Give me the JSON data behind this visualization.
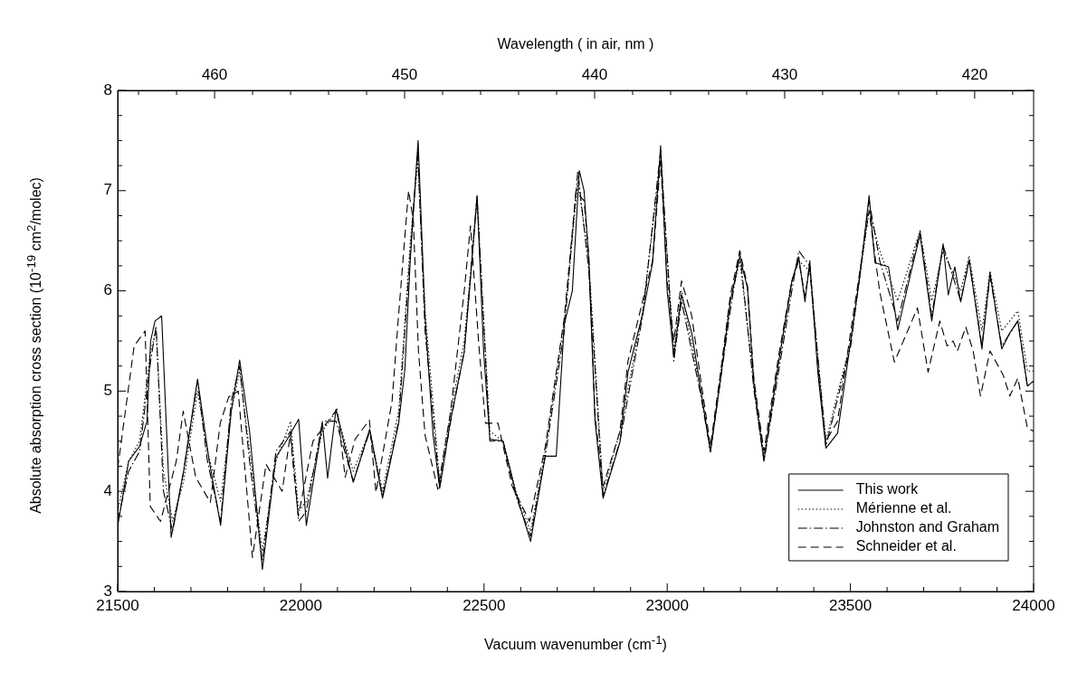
{
  "chart_data": {
    "type": "line",
    "xlabel": "Vacuum wavenumber  (cm$^{-1}$)",
    "x2label": "Wavelength ( in air, nm )",
    "ylabel": "Absolute absorption cross section (10$^{-19}$ cm$^{2}$/molec)",
    "xlim": [
      21500,
      24000
    ],
    "xticks": [
      21500,
      {
        "value": 21600,
        "label": null
      },
      {
        "value": 21700,
        "label": null
      },
      {
        "value": 21800,
        "label": null
      },
      {
        "value": 21900,
        "label": null
      },
      22000,
      {
        "value": 22100,
        "label": null
      },
      {
        "value": 22200,
        "label": null
      },
      {
        "value": 22300,
        "label": null
      },
      {
        "value": 22400,
        "label": null
      },
      22500,
      {
        "value": 22600,
        "label": null
      },
      {
        "value": 22700,
        "label": null
      },
      {
        "value": 22800,
        "label": null
      },
      {
        "value": 22900,
        "label": null
      },
      23000,
      {
        "value": 23100,
        "label": null
      },
      {
        "value": 23200,
        "label": null
      },
      {
        "value": 23300,
        "label": null
      },
      {
        "value": 23400,
        "label": null
      },
      23500,
      {
        "value": 23600,
        "label": null
      },
      {
        "value": 23700,
        "label": null
      },
      {
        "value": 23800,
        "label": null
      },
      {
        "value": 23900,
        "label": null
      },
      24000
    ],
    "x2lim": [
      465.1,
      416.9
    ],
    "x2ticks": [
      {
        "value": 464,
        "label": null
      },
      {
        "value": 462,
        "label": null
      },
      460,
      {
        "value": 458,
        "label": null
      },
      {
        "value": 456,
        "label": null
      },
      {
        "value": 454,
        "label": null
      },
      {
        "value": 452,
        "label": null
      },
      450,
      {
        "value": 448,
        "label": null
      },
      {
        "value": 446,
        "label": null
      },
      {
        "value": 444,
        "label": null
      },
      {
        "value": 442,
        "label": null
      },
      440,
      {
        "value": 438,
        "label": null
      },
      {
        "value": 436,
        "label": null
      },
      {
        "value": 434,
        "label": null
      },
      {
        "value": 432,
        "label": null
      },
      430,
      {
        "value": 428,
        "label": null
      },
      {
        "value": 426,
        "label": null
      },
      {
        "value": 424,
        "label": null
      },
      {
        "value": 422,
        "label": null
      },
      420,
      {
        "value": 418,
        "label": null
      }
    ],
    "ylim": [
      3,
      8
    ],
    "yticks": [
      3,
      {
        "value": 3.25,
        "label": null
      },
      {
        "value": 3.5,
        "label": null
      },
      {
        "value": 3.75,
        "label": null
      },
      4,
      {
        "value": 4.25,
        "label": null
      },
      {
        "value": 4.5,
        "label": null
      },
      {
        "value": 4.75,
        "label": null
      },
      5,
      {
        "value": 5.25,
        "label": null
      },
      {
        "value": 5.5,
        "label": null
      },
      {
        "value": 5.75,
        "label": null
      },
      6,
      {
        "value": 6.25,
        "label": null
      },
      {
        "value": 6.5,
        "label": null
      },
      {
        "value": 6.75,
        "label": null
      },
      7,
      {
        "value": 7.25,
        "label": null
      },
      {
        "value": 7.5,
        "label": null
      },
      {
        "value": 7.75,
        "label": null
      },
      8
    ],
    "grid": false,
    "legend": "bottom right",
    "marker": "none",
    "series": [
      {
        "name": "This work",
        "color": "#000000",
        "line_style": "solid",
        "x": [
          21500,
          21530,
          21560,
          21580,
          21590,
          21602,
          21620,
          21646,
          21680,
          21718,
          21750,
          21781,
          21810,
          21833,
          21860,
          21895,
          21932,
          21960,
          21994,
          22015,
          22059,
          22073,
          22096,
          22143,
          22188,
          22223,
          22267,
          22284,
          22299,
          22320,
          22339,
          22361,
          22379,
          22409,
          22446,
          22463,
          22481,
          22499,
          22516,
          22552,
          22587,
          22627,
          22667,
          22697,
          22719,
          22741,
          22760,
          22773,
          22786,
          22803,
          22825,
          22871,
          22893,
          22933,
          22960,
          22982,
          23000,
          23018,
          23039,
          23067,
          23092,
          23118,
          23146,
          23172,
          23198,
          23219,
          23237,
          23264,
          23304,
          23340,
          23359,
          23376,
          23389,
          23411,
          23433,
          23465,
          23501,
          23526,
          23551,
          23567,
          23604,
          23629,
          23665,
          23690,
          23722,
          23753,
          23767,
          23785,
          23801,
          23824,
          23859,
          23881,
          23913,
          23935,
          23957,
          23983,
          24000
        ],
        "values": [
          3.65,
          4.3,
          4.45,
          4.7,
          5.5,
          5.7,
          5.75,
          3.54,
          4.2,
          5.12,
          4.3,
          3.66,
          4.8,
          5.31,
          4.6,
          3.22,
          4.34,
          4.5,
          4.72,
          3.66,
          4.68,
          4.13,
          4.82,
          4.09,
          4.62,
          3.93,
          4.68,
          5.22,
          6.33,
          7.5,
          5.74,
          4.56,
          4.03,
          4.72,
          5.39,
          6.12,
          6.95,
          5.39,
          4.52,
          4.5,
          3.98,
          3.5,
          4.35,
          4.35,
          5.67,
          6.0,
          7.2,
          7.0,
          6.3,
          4.7,
          3.93,
          4.49,
          5.19,
          5.77,
          6.28,
          7.45,
          5.99,
          5.35,
          5.96,
          5.58,
          5.0,
          4.39,
          5.13,
          5.89,
          6.34,
          6.03,
          5.04,
          4.31,
          5.29,
          6.09,
          6.34,
          5.89,
          6.3,
          5.19,
          4.43,
          4.58,
          5.51,
          6.15,
          6.95,
          6.28,
          6.24,
          5.61,
          6.18,
          6.56,
          5.7,
          6.47,
          5.96,
          6.24,
          5.89,
          6.31,
          5.42,
          6.18,
          5.42,
          5.58,
          5.7,
          5.05,
          5.1
        ]
      },
      {
        "name": "Mérienne et al.",
        "color": "#000000",
        "line_style": "dotted",
        "x": [
          21500,
          21530,
          21560,
          21590,
          21605,
          21625,
          21650,
          21680,
          21718,
          21745,
          21781,
          21810,
          21833,
          21860,
          21895,
          21932,
          21972,
          21994,
          22015,
          22059,
          22096,
          22143,
          22188,
          22223,
          22267,
          22299,
          22319,
          22339,
          22379,
          22409,
          22446,
          22481,
          22516,
          22552,
          22587,
          22627,
          22667,
          22719,
          22756,
          22786,
          22825,
          22871,
          22933,
          22982,
          23018,
          23039,
          23092,
          23118,
          23172,
          23198,
          23237,
          23264,
          23340,
          23359,
          23389,
          23433,
          23501,
          23551,
          23580,
          23629,
          23690,
          23722,
          23753,
          23801,
          23824,
          23859,
          23881,
          23913,
          23957,
          23983,
          24000
        ],
        "values": [
          3.8,
          4.3,
          4.5,
          5.4,
          5.6,
          4.2,
          3.7,
          4.1,
          5.0,
          4.4,
          3.9,
          4.8,
          5.2,
          4.4,
          3.4,
          4.3,
          4.7,
          3.8,
          3.9,
          4.6,
          4.8,
          4.2,
          4.6,
          4.0,
          4.8,
          6.5,
          7.3,
          5.8,
          4.1,
          4.8,
          5.5,
          6.9,
          4.6,
          4.5,
          4.0,
          3.6,
          4.4,
          5.7,
          7.1,
          6.3,
          4.0,
          4.6,
          5.8,
          7.3,
          5.4,
          6.0,
          5.0,
          4.4,
          5.9,
          6.3,
          5.1,
          4.35,
          6.1,
          6.3,
          6.2,
          4.5,
          5.5,
          6.8,
          6.4,
          5.9,
          6.6,
          5.9,
          6.4,
          6.0,
          6.35,
          5.6,
          6.2,
          5.6,
          5.8,
          5.2,
          5.2
        ]
      },
      {
        "name": "Johnston and Graham",
        "color": "#000000",
        "line_style": "dashdot",
        "x": [
          21500,
          21530,
          21560,
          21590,
          21605,
          21625,
          21650,
          21680,
          21718,
          21745,
          21781,
          21810,
          21833,
          21860,
          21895,
          21932,
          21972,
          21994,
          22015,
          22059,
          22096,
          22143,
          22188,
          22223,
          22267,
          22299,
          22319,
          22339,
          22379,
          22409,
          22446,
          22481,
          22516,
          22552,
          22587,
          22627,
          22667,
          22719,
          22756,
          22786,
          22825,
          22871,
          22933,
          22982,
          23018,
          23039,
          23092,
          23118,
          23172,
          23198,
          23237,
          23264,
          23340,
          23359,
          23389,
          23433,
          23501,
          23551,
          23580,
          23629,
          23690,
          23722,
          23753,
          23801,
          23824,
          23859,
          23881,
          23913,
          23957,
          23983,
          24000
        ],
        "values": [
          3.7,
          4.2,
          4.4,
          5.3,
          5.65,
          4.0,
          3.6,
          4.2,
          5.1,
          4.3,
          3.7,
          4.9,
          5.25,
          4.3,
          3.3,
          4.4,
          4.6,
          3.7,
          3.8,
          4.7,
          4.7,
          4.1,
          4.6,
          3.95,
          4.7,
          6.4,
          7.4,
          5.6,
          4.05,
          4.7,
          5.4,
          6.95,
          4.5,
          4.5,
          3.95,
          3.55,
          4.35,
          5.6,
          7.2,
          6.2,
          3.95,
          4.5,
          5.75,
          7.4,
          5.3,
          5.9,
          4.95,
          4.4,
          5.8,
          6.4,
          5.0,
          4.3,
          6.0,
          6.4,
          6.25,
          4.45,
          5.45,
          6.9,
          6.3,
          5.7,
          6.6,
          5.75,
          6.45,
          5.9,
          6.3,
          5.45,
          6.15,
          5.45,
          5.7,
          5.05,
          5.1
        ]
      },
      {
        "name": "Schneider et al.",
        "color": "#000000",
        "line_style": "dashed",
        "x": [
          21500,
          21545,
          21575,
          21589,
          21617,
          21660,
          21679,
          21713,
          21753,
          21780,
          21803,
          21829,
          21868,
          21905,
          21949,
          21971,
          21993,
          22033,
          22099,
          22121,
          22148,
          22187,
          22205,
          22249,
          22267,
          22294,
          22307,
          22321,
          22339,
          22374,
          22409,
          22446,
          22463,
          22486,
          22504,
          22538,
          22577,
          22624,
          22667,
          22719,
          22751,
          22773,
          22786,
          22803,
          22825,
          22871,
          22893,
          22933,
          22960,
          22982,
          23000,
          23018,
          23039,
          23067,
          23092,
          23118,
          23146,
          23172,
          23198,
          23219,
          23237,
          23264,
          23304,
          23340,
          23359,
          23376,
          23389,
          23411,
          23433,
          23465,
          23501,
          23526,
          23551,
          23580,
          23620,
          23683,
          23712,
          23744,
          23764,
          23780,
          23792,
          23815,
          23835,
          23855,
          23881,
          23917,
          23935,
          23957,
          23983,
          24000
        ],
        "values": [
          4.23,
          5.45,
          5.6,
          3.85,
          3.7,
          4.3,
          4.8,
          4.14,
          3.89,
          4.68,
          4.94,
          5.0,
          3.34,
          4.27,
          4.0,
          4.56,
          3.75,
          4.5,
          4.82,
          4.14,
          4.52,
          4.71,
          3.99,
          4.9,
          5.77,
          7.0,
          6.7,
          5.4,
          4.56,
          4.02,
          4.8,
          6.0,
          6.65,
          5.45,
          4.68,
          4.68,
          4.05,
          3.7,
          4.44,
          5.73,
          6.99,
          6.9,
          6.35,
          4.75,
          4.05,
          4.6,
          5.3,
          5.9,
          6.3,
          7.3,
          6.1,
          5.5,
          6.1,
          5.75,
          5.1,
          4.45,
          5.2,
          5.95,
          6.4,
          6.05,
          5.1,
          4.4,
          5.35,
          6.1,
          6.3,
          5.95,
          6.25,
          5.25,
          4.5,
          4.7,
          5.6,
          6.2,
          6.8,
          5.99,
          5.29,
          5.83,
          5.19,
          5.7,
          5.45,
          5.5,
          5.4,
          5.64,
          5.4,
          4.95,
          5.4,
          5.16,
          4.95,
          5.13,
          4.63,
          4.6
        ]
      }
    ]
  }
}
